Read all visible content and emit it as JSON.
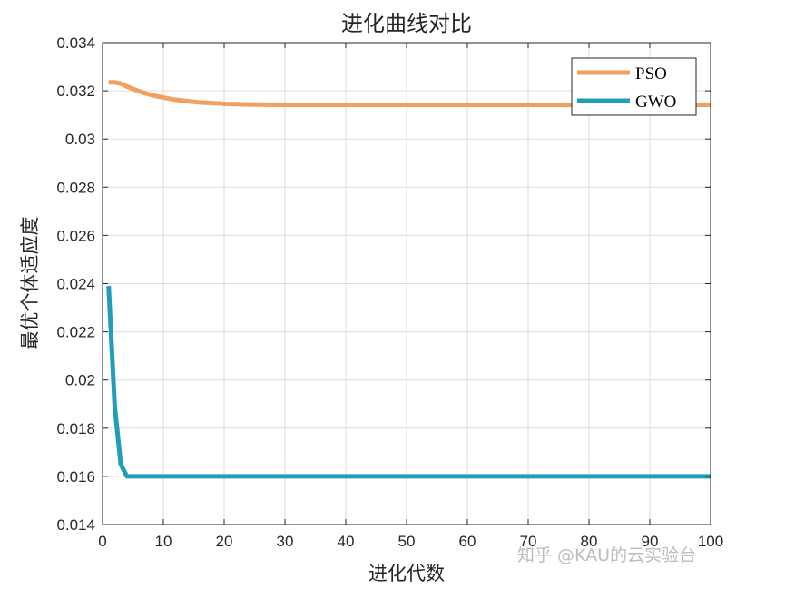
{
  "chart_data": {
    "type": "line",
    "title": "进化曲线对比",
    "xlabel": "进化代数",
    "ylabel": "最优个体适应度",
    "xlim": [
      0,
      100
    ],
    "ylim": [
      0.014,
      0.034
    ],
    "xticks": [
      0,
      10,
      20,
      30,
      40,
      50,
      60,
      70,
      80,
      90,
      100
    ],
    "xtick_labels": [
      "0",
      "10",
      "20",
      "30",
      "40",
      "50",
      "60",
      "70",
      "80",
      "90",
      "100"
    ],
    "yticks": [
      0.014,
      0.016,
      0.018,
      0.02,
      0.022,
      0.024,
      0.026,
      0.028,
      0.03,
      0.032,
      0.034
    ],
    "ytick_labels": [
      "0.014",
      "0.016",
      "0.018",
      "0.02",
      "0.022",
      "0.024",
      "0.026",
      "0.028",
      "0.03",
      "0.032",
      "0.034"
    ],
    "grid": true,
    "legend_position": "top-right",
    "series": [
      {
        "name": "PSO",
        "color": "#F0A060",
        "x": [
          1,
          2,
          3,
          4,
          5,
          6,
          7,
          8,
          9,
          10,
          12,
          14,
          16,
          18,
          20,
          25,
          30,
          40,
          50,
          60,
          70,
          80,
          90,
          100
        ],
        "y": [
          0.03235,
          0.03235,
          0.0323,
          0.03218,
          0.03208,
          0.03198,
          0.0319,
          0.03183,
          0.03177,
          0.03172,
          0.03163,
          0.03157,
          0.03152,
          0.03149,
          0.03146,
          0.03143,
          0.03142,
          0.03142,
          0.03142,
          0.03142,
          0.03142,
          0.03142,
          0.03142,
          0.03142
        ]
      },
      {
        "name": "GWO",
        "color": "#1F9EBB",
        "x": [
          1,
          2,
          3,
          4,
          5,
          10,
          20,
          30,
          40,
          50,
          60,
          70,
          80,
          90,
          100
        ],
        "y": [
          0.0239,
          0.0189,
          0.0165,
          0.016,
          0.016,
          0.016,
          0.016,
          0.016,
          0.016,
          0.016,
          0.016,
          0.016,
          0.016,
          0.016,
          0.016
        ]
      }
    ]
  },
  "watermark": "知乎 @KAU的云实验台"
}
